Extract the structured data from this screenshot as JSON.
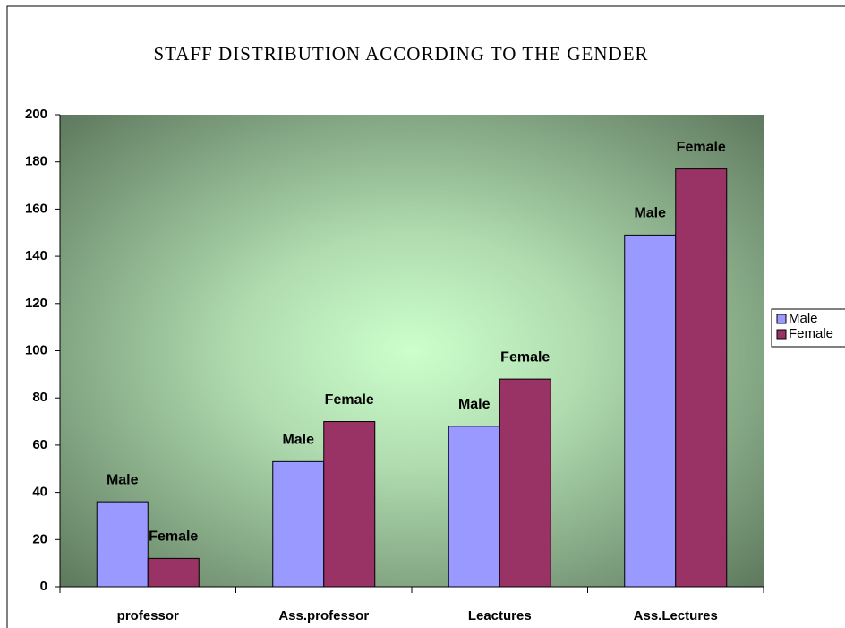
{
  "chart_data": {
    "type": "bar",
    "title": "STAFF DISTRIBUTION ACCORDING TO THE GENDER",
    "categories": [
      "professor",
      "Ass.professor",
      "Leactures",
      "Ass.Lectures"
    ],
    "series": [
      {
        "name": "Male",
        "color": "#9999ff",
        "values": [
          36,
          53,
          68,
          149
        ]
      },
      {
        "name": "Female",
        "color": "#993366",
        "values": [
          12,
          70,
          88,
          177
        ]
      }
    ],
    "ylim": [
      0,
      200
    ],
    "yticks": [
      0,
      20,
      40,
      60,
      80,
      100,
      120,
      140,
      160,
      180,
      200
    ],
    "legend": "right"
  }
}
